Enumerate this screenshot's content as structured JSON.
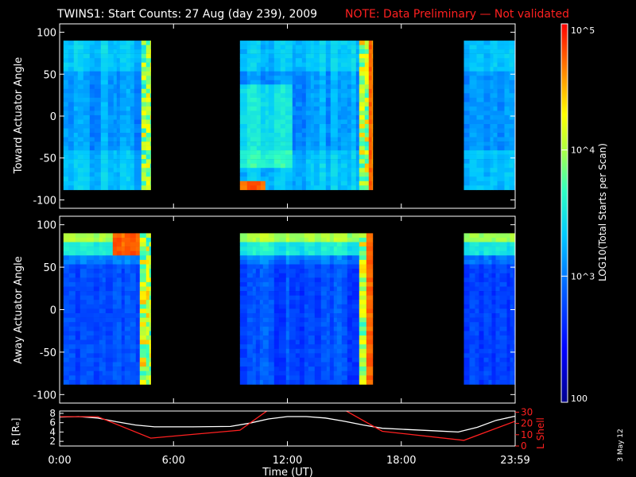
{
  "header": {
    "title": "TWINS1: Start Counts: 27 Aug (day 239), 2009",
    "note": "NOTE: Data Preliminary — Not validated",
    "note_color": "#ff2020"
  },
  "footer": {
    "date_stamp": "3 May 12"
  },
  "chart_data": [
    {
      "type": "heatmap",
      "panel": "toward",
      "ylabel": "Toward Actuator Angle",
      "ylim": [
        -110,
        110
      ],
      "yticks": [
        100,
        50,
        0,
        -50,
        -100
      ],
      "angle_range": [
        -88,
        90
      ],
      "xlim_hours": [
        0,
        24
      ],
      "data_intervals_hours": [
        [
          0.2,
          4.8
        ],
        [
          9.5,
          16.5
        ],
        [
          21.3,
          24
        ]
      ],
      "colorscale": "rainbow-log",
      "dominant_level": "~10^3 (blue/cyan)"
    },
    {
      "type": "heatmap",
      "panel": "away",
      "ylabel": "Away Actuator Angle",
      "ylim": [
        -110,
        110
      ],
      "yticks": [
        100,
        50,
        0,
        -50,
        -100
      ],
      "angle_range": [
        -88,
        90
      ],
      "xlim_hours": [
        0,
        24
      ],
      "data_intervals_hours": [
        [
          0.2,
          4.8
        ],
        [
          9.5,
          16.5
        ],
        [
          21.3,
          24
        ]
      ],
      "colorscale": "rainbow-log",
      "dominant_level": "~10^2.5 (blue)"
    },
    {
      "type": "line",
      "panel": "orbit",
      "ylabel_left": "R [Rₑ]",
      "ylabel_right": "L Shell",
      "yticks_left": [
        8,
        6,
        4,
        2
      ],
      "yticks_right": [
        30,
        20,
        10,
        0
      ],
      "ylim_left": [
        1,
        8.5
      ],
      "ylim_right": [
        0,
        31
      ],
      "xlabel": "Time (UT)",
      "xtick_labels": [
        "0:00",
        "6:00",
        "12:00",
        "18:00",
        "23:59"
      ],
      "xtick_hours": [
        0,
        6,
        12,
        18,
        24
      ],
      "series": [
        {
          "name": "R [Rₑ]",
          "color": "#ffffff",
          "x": [
            0,
            1,
            2,
            3,
            4,
            5,
            7,
            9,
            10,
            11,
            12,
            13,
            14,
            15,
            16,
            17,
            18,
            20,
            21,
            22,
            23,
            24
          ],
          "y": [
            7.2,
            7.3,
            7.0,
            6.2,
            5.5,
            5.1,
            5.1,
            5.2,
            5.9,
            6.8,
            7.3,
            7.3,
            7.0,
            6.3,
            5.5,
            4.8,
            4.6,
            4.2,
            4.0,
            5.0,
            6.5,
            7.4
          ]
        },
        {
          "name": "L Shell",
          "color": "#ff2020",
          "x": [
            0,
            2,
            4.8,
            9.5,
            11,
            15,
            17,
            21.3,
            24
          ],
          "y": [
            26,
            26,
            7,
            14,
            32,
            32,
            13,
            5,
            22
          ]
        }
      ]
    }
  ],
  "colorbar": {
    "label": "LOG10(Total Starts per Scan)",
    "tick_labels": [
      "10^5",
      "10^4",
      "10^3",
      "100"
    ],
    "tick_values": [
      100000,
      10000,
      1000,
      100
    ],
    "range": [
      100,
      100000
    ]
  }
}
